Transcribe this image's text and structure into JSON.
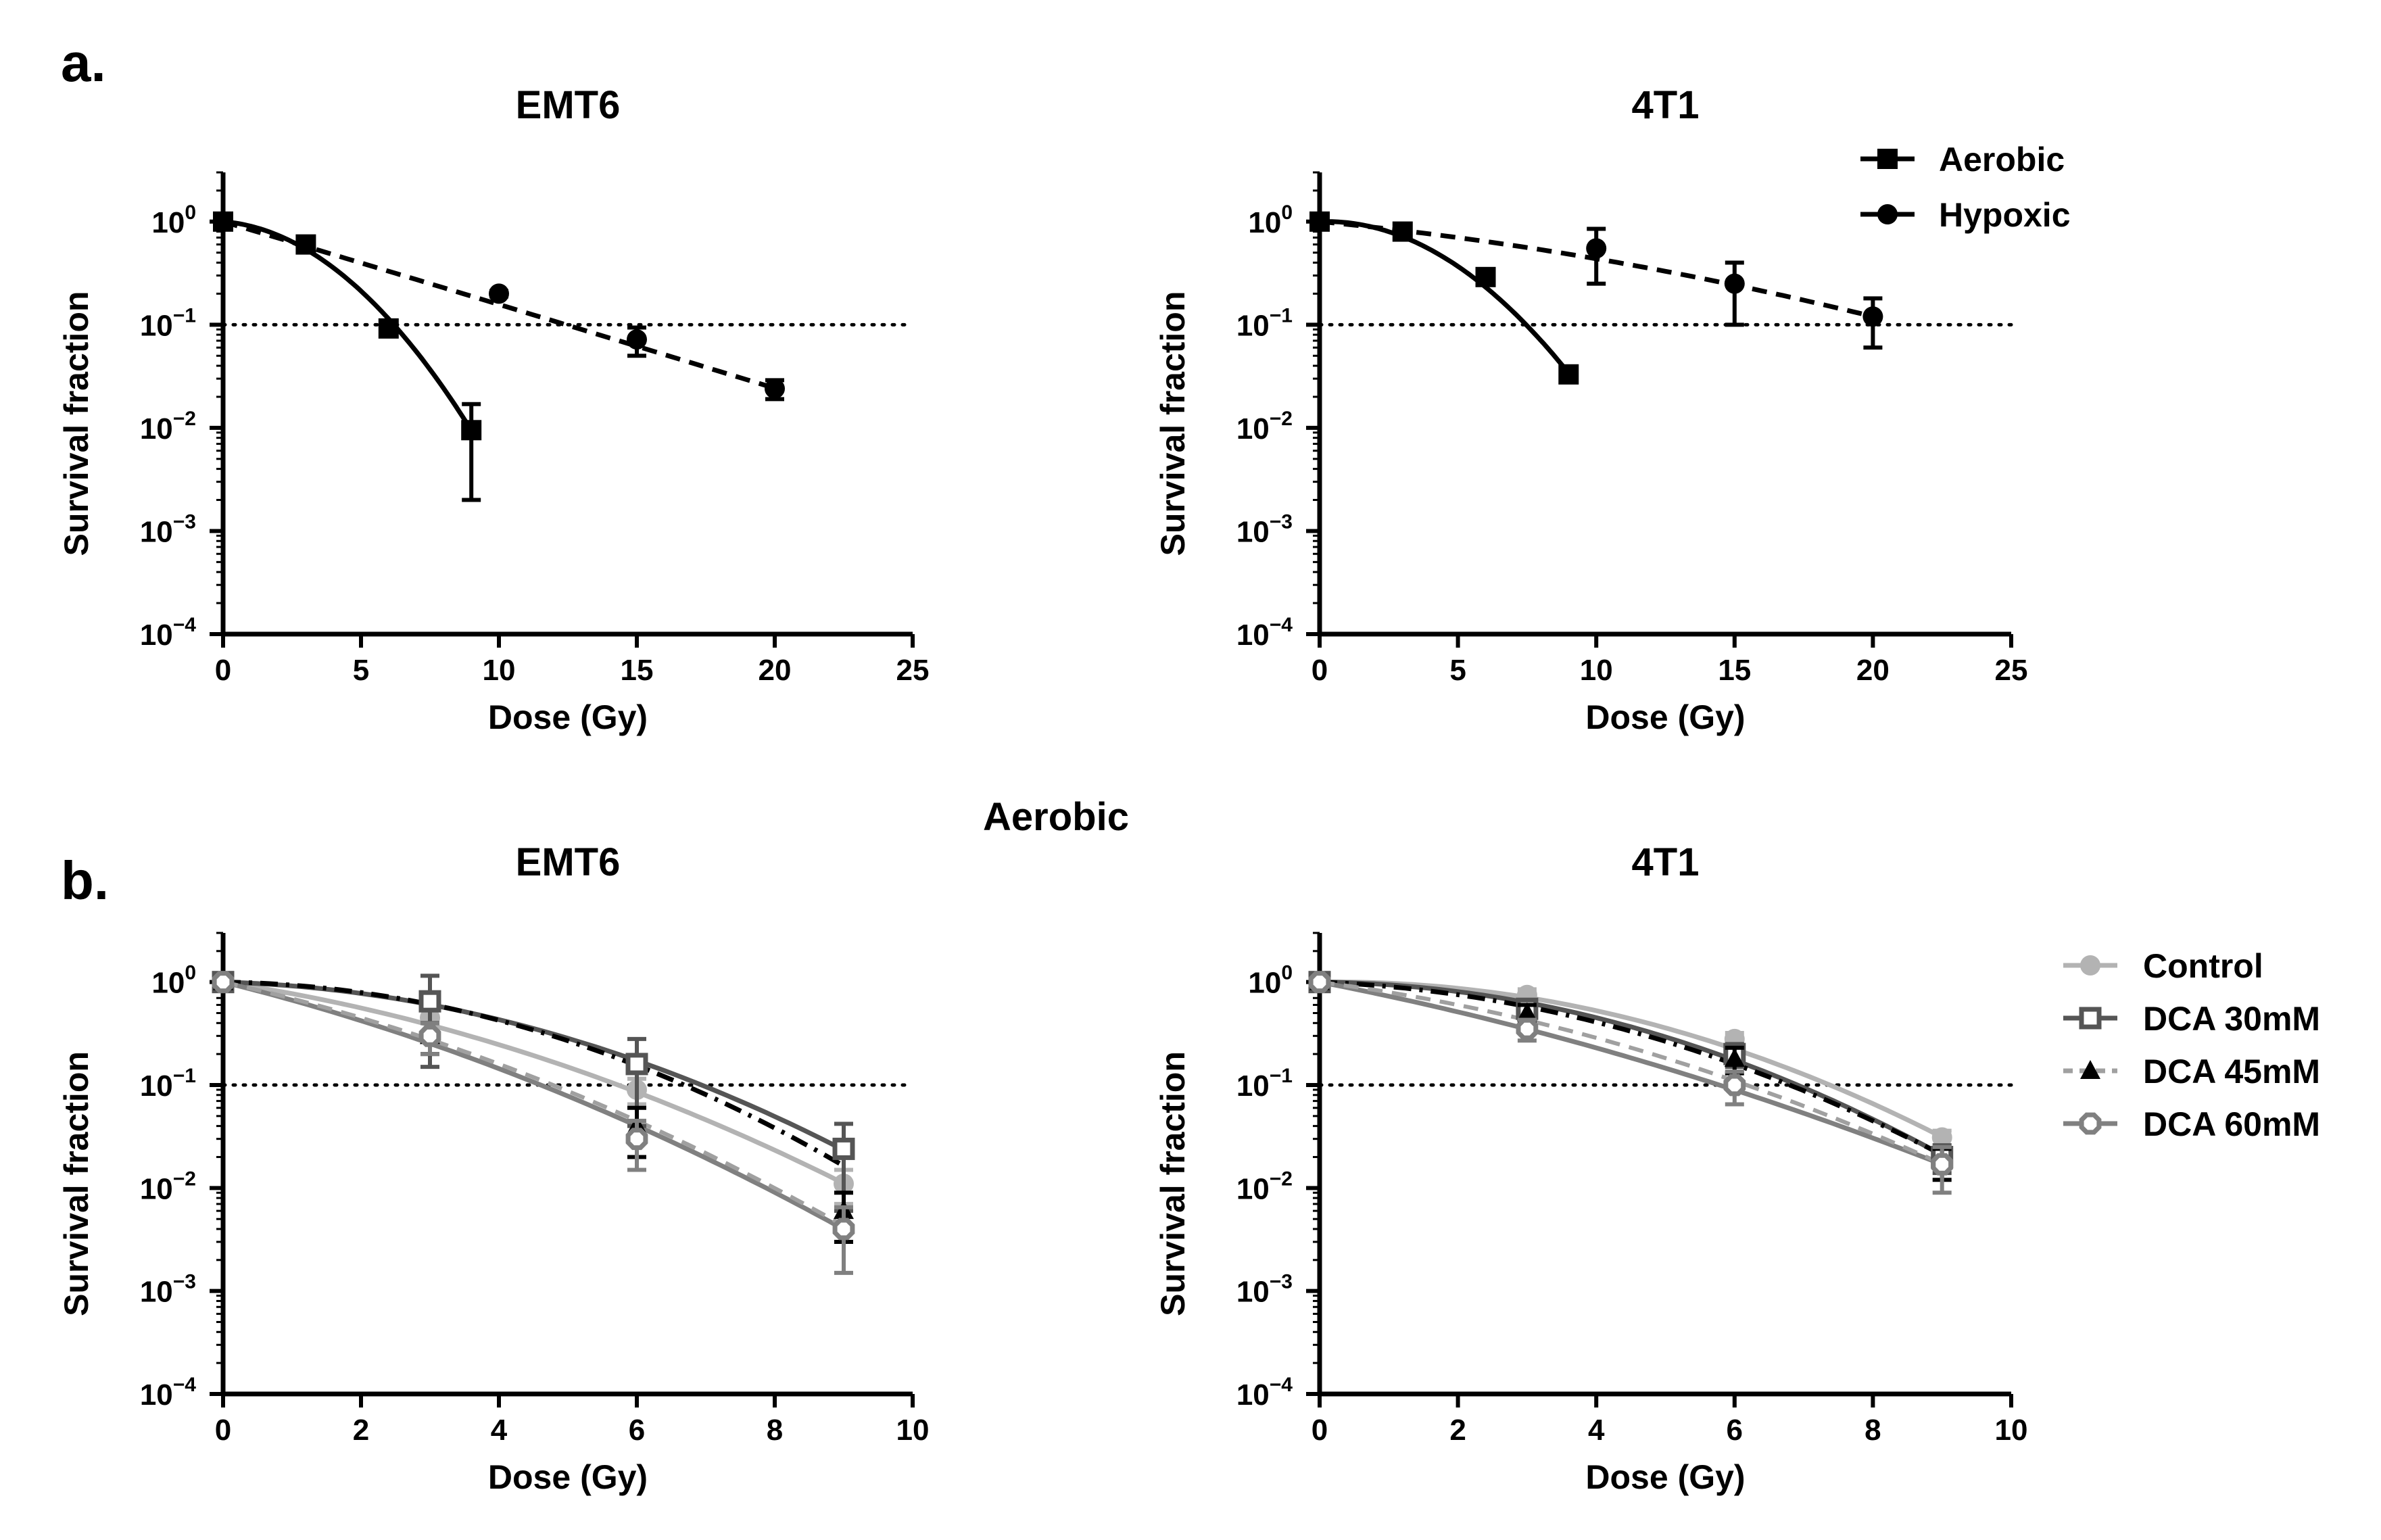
{
  "panel_labels": [
    "a.",
    "b."
  ],
  "section_title": "Aerobic",
  "legends": {
    "a": [
      "Aerobic",
      "Hypoxic"
    ],
    "b": [
      "Control",
      "DCA 30mM",
      "DCA 45mM",
      "DCA 60mM"
    ]
  },
  "chart_data": [
    {
      "id": "a1",
      "type": "line",
      "title": "EMT6",
      "xlabel": "Dose (Gy)",
      "ylabel": "Survival fraction",
      "xlim": [
        0,
        25
      ],
      "xticks": [
        0,
        5,
        10,
        15,
        20,
        25
      ],
      "ylim": [
        0.0001,
        3
      ],
      "yscale": "log",
      "yticks": [
        "10^0",
        "10^-1",
        "10^-2",
        "10^-3",
        "10^-4"
      ],
      "reference_line": 0.1,
      "series": [
        {
          "name": "Aerobic",
          "marker": "square",
          "color": "#000000",
          "dash": "solid",
          "x": [
            0,
            3,
            6,
            9
          ],
          "y": [
            1.0,
            0.6,
            0.092,
            0.0095
          ],
          "err": [
            0,
            0.05,
            0.012,
            0.0075
          ],
          "fit": {
            "alpha": 0.05,
            "beta": 0.052
          }
        },
        {
          "name": "Hypoxic",
          "marker": "circle",
          "color": "#000000",
          "dash": "dashed",
          "x": [
            0,
            10,
            15,
            20
          ],
          "y": [
            1.0,
            0.2,
            0.072,
            0.024
          ],
          "err": [
            0,
            0.012,
            0.022,
            0.005
          ],
          "fit": {
            "alpha": 0.184,
            "beta": 0.0001
          }
        }
      ]
    },
    {
      "id": "a2",
      "type": "line",
      "title": "4T1",
      "xlabel": "Dose (Gy)",
      "ylabel": "Survival fraction",
      "xlim": [
        0,
        25
      ],
      "xticks": [
        0,
        5,
        10,
        15,
        20,
        25
      ],
      "ylim": [
        0.0001,
        3
      ],
      "yscale": "log",
      "yticks": [
        "10^0",
        "10^-1",
        "10^-2",
        "10^-3",
        "10^-4"
      ],
      "reference_line": 0.1,
      "series": [
        {
          "name": "Aerobic",
          "marker": "square",
          "color": "#000000",
          "dash": "solid",
          "x": [
            0,
            3,
            6,
            9
          ],
          "y": [
            1.0,
            0.8,
            0.29,
            0.033
          ],
          "err": [
            0,
            0.08,
            0.03,
            0.003
          ],
          "fit": {
            "alpha": -0.02,
            "beta": 0.044
          }
        },
        {
          "name": "Hypoxic",
          "marker": "circle",
          "color": "#000000",
          "dash": "dashed",
          "x": [
            0,
            10,
            15,
            20
          ],
          "y": [
            1.0,
            0.55,
            0.25,
            0.12
          ],
          "err": [
            0,
            0.3,
            0.15,
            0.06
          ],
          "fit": {
            "alpha": 0.06,
            "beta": 0.0023
          }
        }
      ]
    },
    {
      "id": "b1",
      "type": "line",
      "title": "EMT6",
      "xlabel": "Dose (Gy)",
      "ylabel": "Survival fraction",
      "xlim": [
        0,
        10
      ],
      "xticks": [
        0,
        2,
        4,
        6,
        8,
        10
      ],
      "ylim": [
        0.0001,
        3
      ],
      "yscale": "log",
      "yticks": [
        "10^0",
        "10^-1",
        "10^-2",
        "10^-3",
        "10^-4"
      ],
      "reference_line": 0.1,
      "series": [
        {
          "name": "Control",
          "marker": "circle",
          "color": "#b3b3b3",
          "dash": "solid",
          "x": [
            0,
            3,
            6,
            9
          ],
          "y": [
            1.0,
            0.45,
            0.09,
            0.011
          ],
          "err": [
            0,
            0.12,
            0.025,
            0.004
          ],
          "fit": {
            "alpha": 0.23,
            "beta": 0.03
          }
        },
        {
          "name": "DCA 30mM",
          "marker": "square-open",
          "color": "#555555",
          "dash": "solid",
          "x": [
            0,
            3,
            6,
            9
          ],
          "y": [
            1.0,
            0.65,
            0.16,
            0.024
          ],
          "err": [
            0,
            0.5,
            0.12,
            0.018
          ],
          "fit": {
            "alpha": 0.0,
            "beta": 0.0
          }
        },
        {
          "name": "DCA 45mM",
          "marker": "triangle",
          "color": "#000000",
          "dash": "dashdot",
          "x": [
            0,
            3,
            6,
            9
          ],
          "y": [
            1.0,
            0.3,
            0.04,
            0.006
          ],
          "err": [
            0,
            0.1,
            0.02,
            0.003
          ],
          "fit": {
            "alpha": 0.02,
            "beta": 0.0485
          }
        },
        {
          "name": "DCA 60mM",
          "marker": "octagon-open",
          "color": "#808080",
          "dash": "solid",
          "x": [
            0,
            3,
            6,
            9
          ],
          "y": [
            1.0,
            0.3,
            0.03,
            0.004
          ],
          "err": [
            0,
            0.1,
            0.015,
            0.0025
          ],
          "fit": {
            "alpha": 0.38,
            "beta": 0.026
          }
        }
      ],
      "fits_extra": [
        {
          "color": "#a0a0a0",
          "dash": "dashed",
          "alpha": 0.34,
          "beta": 0.0295
        }
      ]
    },
    {
      "id": "b2",
      "type": "line",
      "title": "4T1",
      "xlabel": "Dose (Gy)",
      "ylabel": "Survival fraction",
      "xlim": [
        0,
        10
      ],
      "xticks": [
        0,
        2,
        4,
        6,
        8,
        10
      ],
      "ylim": [
        0.0001,
        3
      ],
      "yscale": "log",
      "yticks": [
        "10^0",
        "10^-1",
        "10^-2",
        "10^-3",
        "10^-4"
      ],
      "reference_line": 0.1,
      "series": [
        {
          "name": "Control",
          "marker": "circle",
          "color": "#b3b3b3",
          "dash": "solid",
          "x": [
            0,
            3,
            6,
            9
          ],
          "y": [
            1.0,
            0.75,
            0.28,
            0.031
          ],
          "err": [
            0,
            0.1,
            0.04,
            0.005
          ],
          "fit": {
            "alpha": -0.02,
            "beta": 0.045
          }
        },
        {
          "name": "DCA 30mM",
          "marker": "square-open",
          "color": "#555555",
          "dash": "solid",
          "x": [
            0,
            3,
            6,
            9
          ],
          "y": [
            1.0,
            0.55,
            0.2,
            0.02
          ],
          "err": [
            0,
            0.1,
            0.05,
            0.006
          ],
          "fit": {
            "alpha": 0.0,
            "beta": 0.0
          }
        },
        {
          "name": "DCA 45mM",
          "marker": "triangle",
          "color": "#000000",
          "dash": "dashdot",
          "x": [
            0,
            3,
            6,
            9
          ],
          "y": [
            1.0,
            0.5,
            0.18,
            0.018
          ],
          "err": [
            0,
            0.1,
            0.05,
            0.006
          ],
          "fit": {
            "alpha": 0.06,
            "beta": 0.041
          }
        },
        {
          "name": "DCA 60mM",
          "marker": "octagon-open",
          "color": "#808080",
          "dash": "solid",
          "x": [
            0,
            3,
            6,
            9
          ],
          "y": [
            1.0,
            0.35,
            0.1,
            0.017
          ],
          "err": [
            0,
            0.08,
            0.035,
            0.008
          ],
          "fit": {
            "alpha": 0.3,
            "beta": 0.017
          }
        }
      ],
      "fits_extra": [
        {
          "color": "#a0a0a0",
          "dash": "dashed",
          "alpha": 0.2,
          "beta": 0.028
        }
      ]
    }
  ]
}
